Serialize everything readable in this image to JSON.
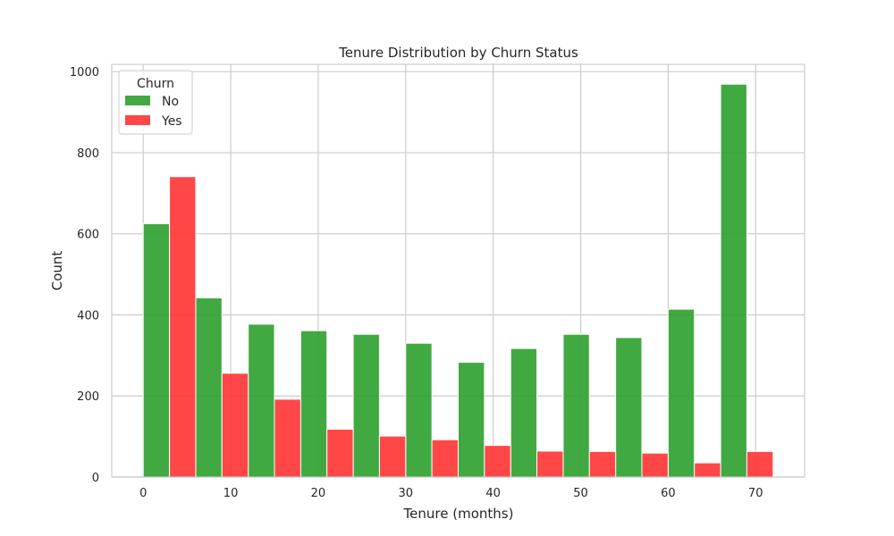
{
  "chart_data": {
    "type": "bar",
    "title": "Tenure Distribution by Churn Status",
    "xlabel": "Tenure (months)",
    "ylabel": "Count",
    "xlim": [
      -3.6,
      75.6
    ],
    "ylim": [
      0,
      1018
    ],
    "x_ticks": [
      0,
      10,
      20,
      30,
      40,
      50,
      60,
      70
    ],
    "y_ticks": [
      0,
      200,
      400,
      600,
      800,
      1000
    ],
    "grid": true,
    "legend": {
      "title": "Churn",
      "placement": "top-left"
    },
    "bin_edges": [
      0,
      6,
      12,
      18,
      24,
      30,
      36,
      42,
      48,
      54,
      60,
      66,
      72
    ],
    "series": [
      {
        "name": "No",
        "color": "#2ca02c",
        "values": [
          625,
          442,
          377,
          361,
          352,
          330,
          283,
          317,
          352,
          344,
          414,
          969
        ]
      },
      {
        "name": "Yes",
        "color": "#ff3333",
        "values": [
          741,
          256,
          192,
          118,
          101,
          92,
          78,
          64,
          63,
          59,
          35,
          63
        ]
      }
    ]
  }
}
